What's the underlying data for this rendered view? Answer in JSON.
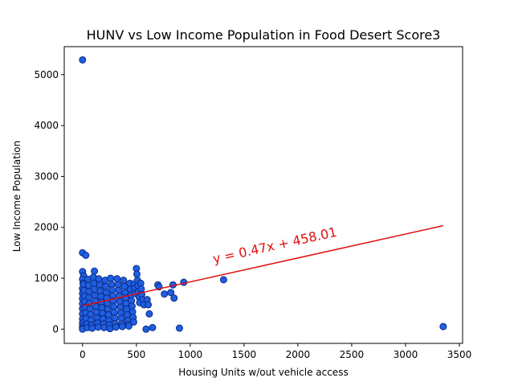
{
  "chart_data": {
    "type": "scatter",
    "title": "HUNV vs Low Income Population in Food Desert Score3",
    "xlabel": "Housing Units w/out vehicle access",
    "ylabel": "Low Income Population",
    "xlim": [
      -170,
      3530
    ],
    "ylim": [
      -280,
      5550
    ],
    "x_ticks": [
      0,
      500,
      1000,
      1500,
      2000,
      2500,
      3000,
      3500
    ],
    "y_ticks": [
      0,
      1000,
      2000,
      3000,
      4000,
      5000
    ],
    "x_tick_labels": [
      "0",
      "500",
      "1000",
      "1500",
      "2000",
      "2500",
      "3000",
      "3500"
    ],
    "y_tick_labels": [
      "0",
      "1000",
      "2000",
      "3000",
      "4000",
      "5000"
    ],
    "grid": false,
    "legend": "none",
    "series": [
      {
        "marker_fill": "#1f5fe0",
        "marker_edge": "#0b2a8a",
        "points": [
          [
            0,
            5290
          ],
          [
            0,
            1500
          ],
          [
            30,
            1450
          ],
          [
            0,
            1130
          ],
          [
            10,
            1050
          ],
          [
            0,
            980
          ],
          [
            5,
            900
          ],
          [
            0,
            800
          ],
          [
            0,
            700
          ],
          [
            0,
            600
          ],
          [
            0,
            500
          ],
          [
            0,
            400
          ],
          [
            0,
            300
          ],
          [
            0,
            200
          ],
          [
            0,
            120
          ],
          [
            0,
            60
          ],
          [
            0,
            20
          ],
          [
            0,
            0
          ],
          [
            10,
            880
          ],
          [
            15,
            760
          ],
          [
            20,
            650
          ],
          [
            20,
            540
          ],
          [
            25,
            430
          ],
          [
            30,
            320
          ],
          [
            35,
            210
          ],
          [
            40,
            100
          ],
          [
            45,
            30
          ],
          [
            50,
            980
          ],
          [
            55,
            860
          ],
          [
            60,
            740
          ],
          [
            60,
            620
          ],
          [
            65,
            510
          ],
          [
            70,
            400
          ],
          [
            75,
            290
          ],
          [
            80,
            180
          ],
          [
            85,
            80
          ],
          [
            90,
            20
          ],
          [
            110,
            1140
          ],
          [
            100,
            1020
          ],
          [
            105,
            900
          ],
          [
            110,
            780
          ],
          [
            115,
            660
          ],
          [
            120,
            550
          ],
          [
            125,
            440
          ],
          [
            130,
            330
          ],
          [
            135,
            220
          ],
          [
            140,
            120
          ],
          [
            145,
            40
          ],
          [
            150,
            990
          ],
          [
            160,
            870
          ],
          [
            165,
            750
          ],
          [
            170,
            640
          ],
          [
            175,
            530
          ],
          [
            180,
            420
          ],
          [
            185,
            310
          ],
          [
            190,
            200
          ],
          [
            195,
            100
          ],
          [
            200,
            30
          ],
          [
            210,
            960
          ],
          [
            215,
            840
          ],
          [
            220,
            720
          ],
          [
            225,
            610
          ],
          [
            230,
            500
          ],
          [
            235,
            390
          ],
          [
            240,
            280
          ],
          [
            245,
            170
          ],
          [
            250,
            80
          ],
          [
            255,
            10
          ],
          [
            260,
            1000
          ],
          [
            270,
            880
          ],
          [
            275,
            770
          ],
          [
            280,
            660
          ],
          [
            285,
            550
          ],
          [
            290,
            440
          ],
          [
            295,
            330
          ],
          [
            300,
            220
          ],
          [
            305,
            110
          ],
          [
            310,
            40
          ],
          [
            320,
            990
          ],
          [
            330,
            870
          ],
          [
            335,
            760
          ],
          [
            340,
            650
          ],
          [
            345,
            540
          ],
          [
            350,
            430
          ],
          [
            355,
            320
          ],
          [
            360,
            210
          ],
          [
            365,
            100
          ],
          [
            370,
            50
          ],
          [
            380,
            960
          ],
          [
            390,
            840
          ],
          [
            395,
            720
          ],
          [
            400,
            610
          ],
          [
            405,
            500
          ],
          [
            410,
            390
          ],
          [
            415,
            280
          ],
          [
            420,
            170
          ],
          [
            425,
            90
          ],
          [
            430,
            60
          ],
          [
            440,
            900
          ],
          [
            445,
            780
          ],
          [
            450,
            670
          ],
          [
            455,
            560
          ],
          [
            460,
            450
          ],
          [
            465,
            340
          ],
          [
            470,
            230
          ],
          [
            475,
            140
          ],
          [
            480,
            890
          ],
          [
            485,
            800
          ],
          [
            490,
            700
          ],
          [
            500,
            1190
          ],
          [
            505,
            1080
          ],
          [
            510,
            960
          ],
          [
            515,
            850
          ],
          [
            520,
            740
          ],
          [
            525,
            630
          ],
          [
            530,
            520
          ],
          [
            540,
            900
          ],
          [
            545,
            790
          ],
          [
            550,
            680
          ],
          [
            560,
            580
          ],
          [
            570,
            480
          ],
          [
            590,
            0
          ],
          [
            600,
            580
          ],
          [
            610,
            480
          ],
          [
            620,
            300
          ],
          [
            650,
            30
          ],
          [
            700,
            870
          ],
          [
            710,
            830
          ],
          [
            760,
            690
          ],
          [
            820,
            720
          ],
          [
            840,
            870
          ],
          [
            850,
            610
          ],
          [
            900,
            20
          ],
          [
            940,
            920
          ],
          [
            1310,
            970
          ],
          [
            3350,
            50
          ]
        ]
      }
    ],
    "trendline": {
      "slope": 0.47,
      "intercept": 458.01,
      "x_range": [
        0,
        3350
      ],
      "color": "#e01010",
      "label": "y = 0.47x + 458.01",
      "label_x": 1220,
      "label_y": 1290,
      "label_color": "#e01010"
    }
  }
}
